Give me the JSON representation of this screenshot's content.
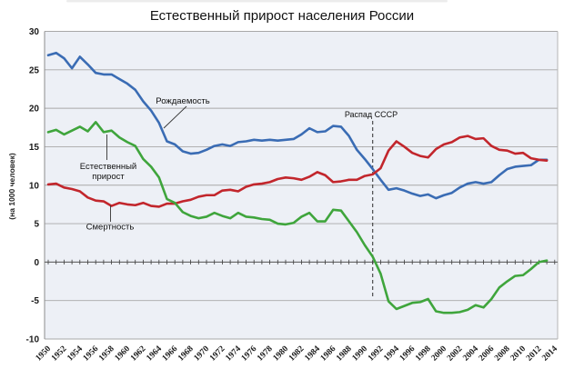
{
  "title": "Естественный прирост населения России",
  "y_axis": {
    "label": "(на 1000 человек)",
    "ticks": [
      30,
      25,
      20,
      15,
      10,
      5,
      0,
      -5,
      -10
    ],
    "min": -10,
    "max": 30
  },
  "x_axis": {
    "tick_years": [
      1950,
      1952,
      1954,
      1956,
      1958,
      1960,
      1962,
      1964,
      1966,
      1968,
      1970,
      1972,
      1974,
      1976,
      1978,
      1980,
      1982,
      1984,
      1986,
      1988,
      1990,
      1992,
      1994,
      1996,
      1998,
      2000,
      2002,
      2004,
      2006,
      2008,
      2010,
      2012,
      2014
    ],
    "min": 1950,
    "max": 2014
  },
  "annotations": {
    "birth_rate": "Рождаемость",
    "natural_growth_line1": "Естественный",
    "natural_growth_line2": "прирост",
    "death_rate": "Смертность",
    "ussr_collapse": "Распад СССР"
  },
  "colors": {
    "birth": "#3a6cb4",
    "death": "#c2262c",
    "natural": "#3fa53c",
    "plot_bg": "#edf0f6",
    "grid": "#a8a8a8",
    "axis": "#5f5f5f",
    "event_line": "#3c3c3c"
  },
  "chart_data": {
    "type": "line",
    "title": "Естественный прирост населения России",
    "xlabel": "",
    "ylabel": "(на 1000 человек)",
    "ylim": [
      -10,
      30
    ],
    "xlim": [
      1950,
      2014
    ],
    "grid": true,
    "legend": "none (inline labels with leader lines)",
    "event_line": {
      "year": 1991,
      "label": "Распад СССР"
    },
    "x": [
      1950,
      1951,
      1952,
      1953,
      1954,
      1955,
      1956,
      1957,
      1958,
      1959,
      1960,
      1961,
      1962,
      1963,
      1964,
      1965,
      1966,
      1967,
      1968,
      1969,
      1970,
      1971,
      1972,
      1973,
      1974,
      1975,
      1976,
      1977,
      1978,
      1979,
      1980,
      1981,
      1982,
      1983,
      1984,
      1985,
      1986,
      1987,
      1988,
      1989,
      1990,
      1991,
      1992,
      1993,
      1994,
      1995,
      1996,
      1997,
      1998,
      1999,
      2000,
      2001,
      2002,
      2003,
      2004,
      2005,
      2006,
      2007,
      2008,
      2009,
      2010,
      2011,
      2012,
      2013
    ],
    "series": [
      {
        "name": "Рождаемость",
        "color": "#3a6cb4",
        "values": [
          26.9,
          27.2,
          26.5,
          25.2,
          26.7,
          25.7,
          24.6,
          24.4,
          24.4,
          23.8,
          23.2,
          22.4,
          20.9,
          19.7,
          18.1,
          15.7,
          15.3,
          14.4,
          14.1,
          14.2,
          14.6,
          15.1,
          15.3,
          15.1,
          15.6,
          15.7,
          15.9,
          15.8,
          15.9,
          15.8,
          15.9,
          16.0,
          16.6,
          17.4,
          16.9,
          17.0,
          17.7,
          17.6,
          16.4,
          14.6,
          13.4,
          12.1,
          10.7,
          9.4,
          9.6,
          9.3,
          8.9,
          8.6,
          8.8,
          8.3,
          8.7,
          9.0,
          9.7,
          10.2,
          10.4,
          10.2,
          10.4,
          11.3,
          12.1,
          12.4,
          12.5,
          12.6,
          13.3,
          13.3
        ]
      },
      {
        "name": "Смертность",
        "color": "#c2262c",
        "values": [
          10.1,
          10.2,
          9.7,
          9.5,
          9.2,
          8.4,
          8.0,
          7.9,
          7.3,
          7.7,
          7.5,
          7.4,
          7.7,
          7.3,
          7.2,
          7.6,
          7.6,
          7.9,
          8.1,
          8.5,
          8.7,
          8.7,
          9.3,
          9.4,
          9.2,
          9.8,
          10.1,
          10.2,
          10.4,
          10.8,
          11.0,
          10.9,
          10.7,
          11.1,
          11.7,
          11.3,
          10.4,
          10.5,
          10.7,
          10.7,
          11.2,
          11.4,
          12.2,
          14.5,
          15.7,
          15.0,
          14.2,
          13.8,
          13.6,
          14.7,
          15.3,
          15.6,
          16.2,
          16.4,
          16.0,
          16.1,
          15.1,
          14.6,
          14.5,
          14.1,
          14.2,
          13.5,
          13.3,
          13.2
        ]
      },
      {
        "name": "Естественный прирост",
        "color": "#3fa53c",
        "values": [
          16.9,
          17.2,
          16.6,
          17.1,
          17.6,
          17.0,
          18.2,
          16.9,
          17.1,
          16.2,
          15.6,
          15.1,
          13.4,
          12.4,
          11.0,
          8.2,
          7.7,
          6.5,
          6.0,
          5.7,
          5.9,
          6.4,
          6.0,
          5.7,
          6.4,
          5.9,
          5.8,
          5.6,
          5.5,
          5.0,
          4.9,
          5.1,
          5.9,
          6.4,
          5.3,
          5.3,
          6.8,
          6.7,
          5.3,
          3.9,
          2.2,
          0.7,
          -1.5,
          -5.1,
          -6.1,
          -5.7,
          -5.3,
          -5.2,
          -4.8,
          -6.4,
          -6.6,
          -6.6,
          -6.5,
          -6.2,
          -5.6,
          -5.9,
          -4.8,
          -3.3,
          -2.5,
          -1.8,
          -1.7,
          -0.9,
          0.0,
          0.2
        ]
      }
    ]
  }
}
